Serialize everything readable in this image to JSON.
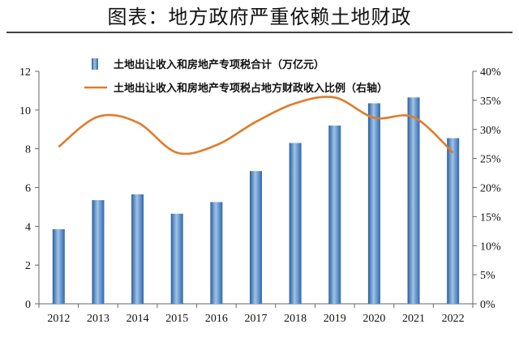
{
  "header": {
    "title": "图表：地方政府严重依赖土地财政"
  },
  "chart_data": {
    "type": "bar",
    "categories": [
      "2012",
      "2013",
      "2014",
      "2015",
      "2016",
      "2017",
      "2018",
      "2019",
      "2020",
      "2021",
      "2022"
    ],
    "series": [
      {
        "name": "土地出让收入和房地产专项税合计（万亿元）",
        "type": "bar",
        "axis": "left",
        "values": [
          3.85,
          5.35,
          5.65,
          4.65,
          5.25,
          6.85,
          8.3,
          9.2,
          10.35,
          10.65,
          8.55
        ]
      },
      {
        "name": "土地出让收入和房地产专项税占地方财政收入比例（右轴）",
        "type": "line",
        "axis": "right",
        "values": [
          27.0,
          32.2,
          31.2,
          26.0,
          27.3,
          31.3,
          34.5,
          35.5,
          32.0,
          32.1,
          26.0
        ]
      }
    ],
    "left_axis": {
      "min": 0,
      "max": 12,
      "step": 2,
      "ticks": [
        "0",
        "2",
        "4",
        "6",
        "8",
        "10",
        "12"
      ]
    },
    "right_axis": {
      "min": 0,
      "max": 40,
      "step": 5,
      "ticks": [
        "0%",
        "5%",
        "10%",
        "15%",
        "20%",
        "25%",
        "30%",
        "35%",
        "40%"
      ]
    },
    "xlabel": "",
    "ylabel": "",
    "grid": false,
    "legend_position": "top-center",
    "colors": {
      "bar": "#3b76b8",
      "bar_highlight": "#9fc3e8",
      "line": "#e07b2a",
      "axis": "#666666"
    }
  }
}
